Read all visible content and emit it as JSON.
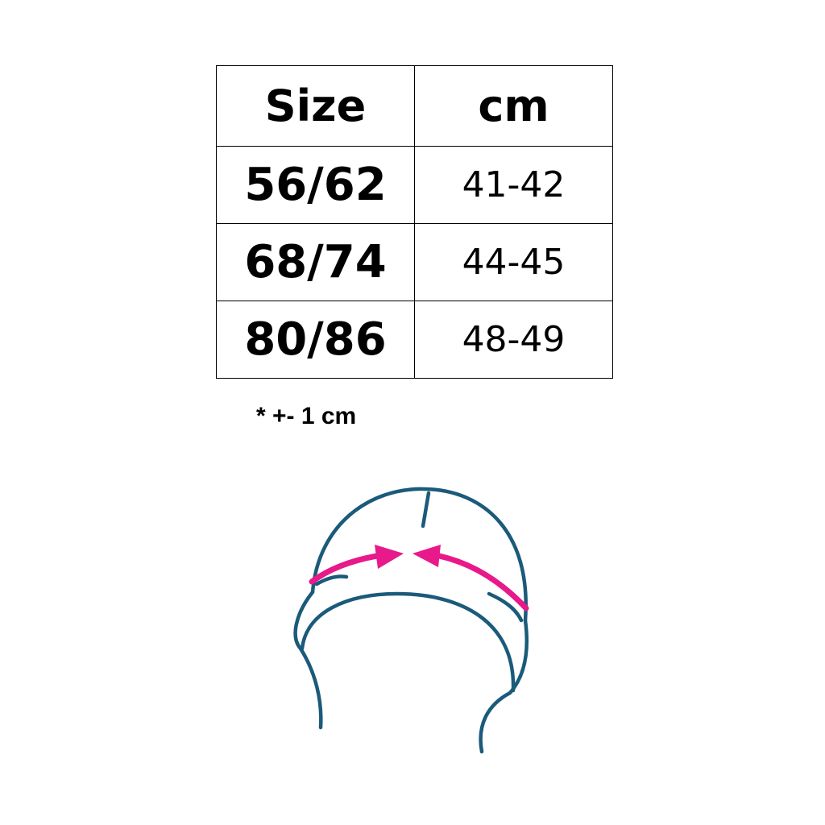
{
  "table": {
    "headers": [
      "Size",
      "cm"
    ],
    "rows": [
      {
        "size": "56/62",
        "cm": "41-42"
      },
      {
        "size": "68/74",
        "cm": "44-45"
      },
      {
        "size": "80/86",
        "cm": "48-49"
      }
    ]
  },
  "note": "* +- 1 cm",
  "illustration": {
    "icon": "hat-head-measurement-icon",
    "outline_color": "#1b5a7a",
    "arrow_color": "#e8198b"
  }
}
